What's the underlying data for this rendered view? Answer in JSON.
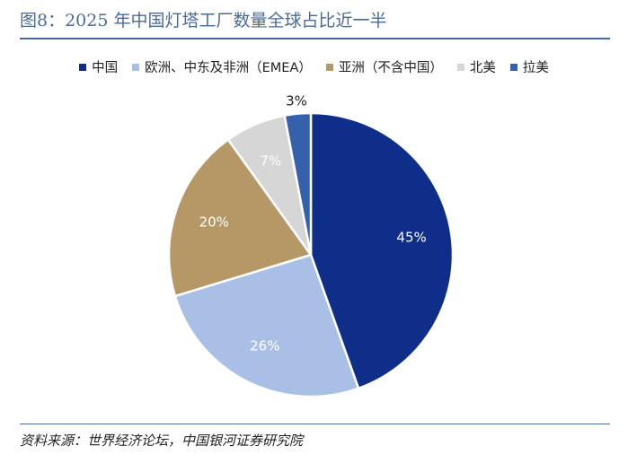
{
  "title": "图8：2025 年中国灯塔工厂数量全球占比近一半",
  "source": "资料来源：世界经济论坛，中国银河证券研究院",
  "chart_data": {
    "type": "pie",
    "title": "图8：2025 年中国灯塔工厂数量全球占比近一半",
    "legend_position": "top",
    "slices": [
      {
        "label": "中国",
        "value": 45,
        "display": "45%",
        "color": "#0e2e8a"
      },
      {
        "label": "欧洲、中东及非洲（EMEA）",
        "value": 26,
        "display": "26%",
        "color": "#a9bfe6"
      },
      {
        "label": "亚洲（不含中国）",
        "value": 20,
        "display": "20%",
        "color": "#b69867"
      },
      {
        "label": "北美",
        "value": 7,
        "display": "7%",
        "color": "#d6d6d6"
      },
      {
        "label": "拉美",
        "value": 3,
        "display": "3%",
        "color": "#3560ac"
      }
    ]
  }
}
